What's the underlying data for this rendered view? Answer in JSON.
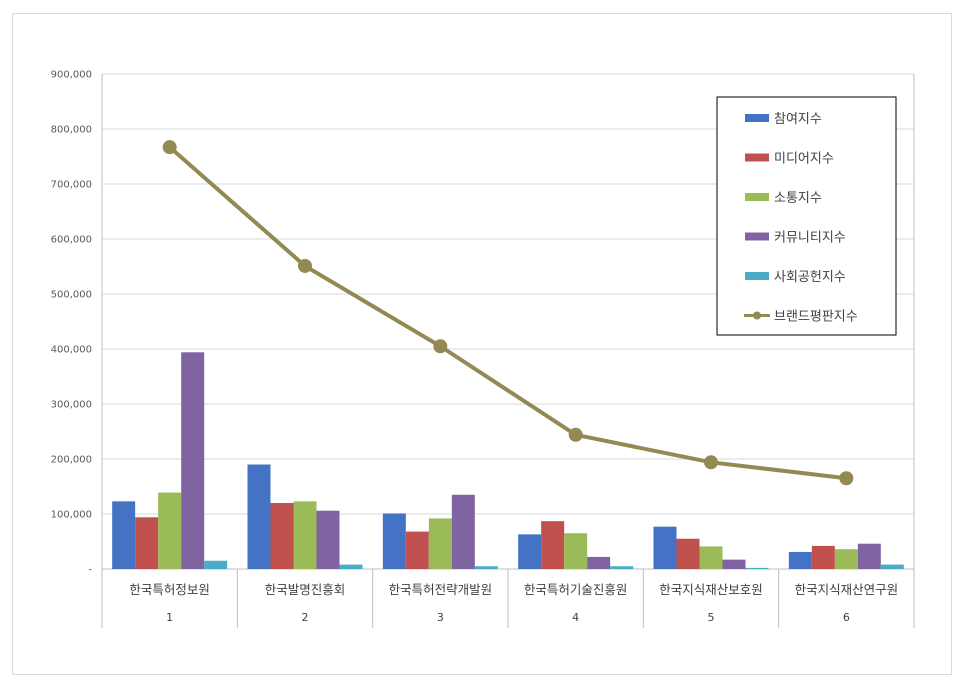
{
  "chart_data": {
    "type": "bar",
    "title": "",
    "xlabel": "",
    "ylabel": "",
    "ylim": [
      0,
      900000
    ],
    "yticks": [
      0,
      100000,
      200000,
      300000,
      400000,
      500000,
      600000,
      700000,
      800000,
      900000
    ],
    "ytick_labels": [
      "-",
      "100,000",
      "200,000",
      "300,000",
      "400,000",
      "500,000",
      "600,000",
      "700,000",
      "800,000",
      "900,000"
    ],
    "grid": true,
    "legend_position": "top-right",
    "categories": [
      "한국특허정보원",
      "한국발명진흥회",
      "한국특허전략개발원",
      "한국특허기술진흥원",
      "한국지식재산보호원",
      "한국지식재산연구원"
    ],
    "category_index": [
      "1",
      "2",
      "3",
      "4",
      "5",
      "6"
    ],
    "series": [
      {
        "name": "참여지수",
        "kind": "bar",
        "color": "#4472c4",
        "values": [
          123000,
          190000,
          101000,
          63000,
          77000,
          31000
        ]
      },
      {
        "name": "미디어지수",
        "kind": "bar",
        "color": "#c0504d",
        "values": [
          94000,
          120000,
          68000,
          87000,
          55000,
          42000
        ]
      },
      {
        "name": "소통지수",
        "kind": "bar",
        "color": "#9bbb59",
        "values": [
          139000,
          123000,
          92000,
          65000,
          41000,
          36000
        ]
      },
      {
        "name": "커뮤니티지수",
        "kind": "bar",
        "color": "#8064a2",
        "values": [
          394000,
          106000,
          135000,
          22000,
          17000,
          46000
        ]
      },
      {
        "name": "사회공헌지수",
        "kind": "bar",
        "color": "#4bacc6",
        "values": [
          15000,
          8000,
          5000,
          5000,
          2000,
          8000
        ]
      },
      {
        "name": "브랜드평판지수",
        "kind": "line",
        "color": "#938953",
        "values": [
          767000,
          551000,
          405000,
          244000,
          194000,
          165000
        ]
      }
    ]
  }
}
